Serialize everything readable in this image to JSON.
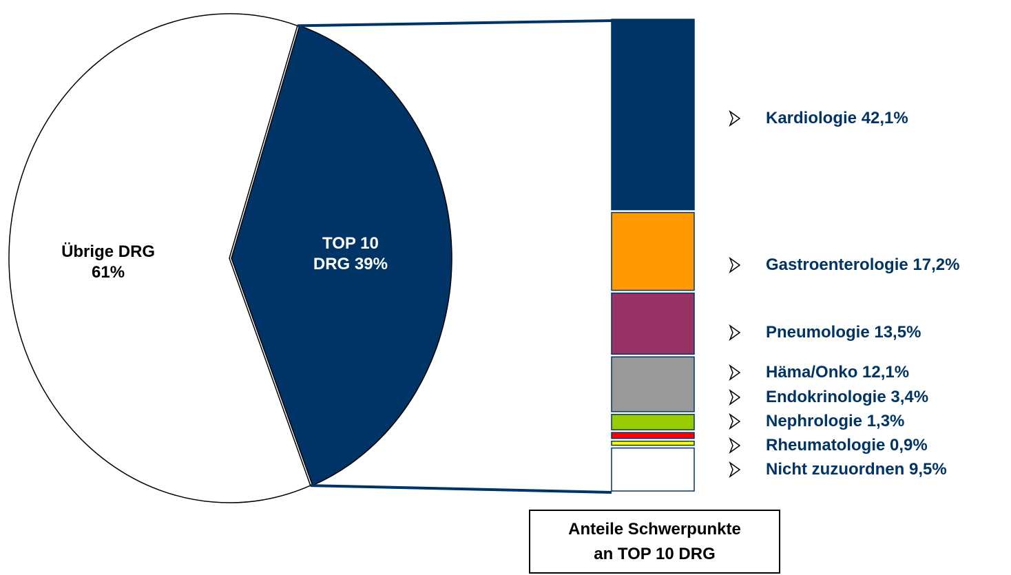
{
  "chart_data": [
    {
      "type": "pie",
      "categories": [
        "Übrige DRG",
        "TOP 10 DRG"
      ],
      "values": [
        61,
        39
      ],
      "value_labels": [
        "61%",
        "39%"
      ],
      "colors": [
        "#ffffff",
        "#003366"
      ],
      "text_colors": [
        "#000000",
        "#ffffff"
      ]
    },
    {
      "type": "stacked_bar",
      "title": "Anteile Schwerpunkte an TOP 10 DRG",
      "series": [
        {
          "name": "Kardiologie",
          "color": "#003366",
          "values": [
            42.1
          ],
          "value_labels": [
            "42,1%"
          ]
        },
        {
          "name": "Gastroenterologie",
          "color": "#ff9900",
          "values": [
            17.2
          ],
          "value_labels": [
            "17,2%"
          ]
        },
        {
          "name": "Pneumologie",
          "color": "#993366",
          "values": [
            13.5
          ],
          "value_labels": [
            "13,5%"
          ]
        },
        {
          "name": "Häma/Onko",
          "color": "#999999",
          "values": [
            12.1
          ],
          "value_labels": [
            "12,1%"
          ]
        },
        {
          "name": "Endokrinologie",
          "color": "#99cc00",
          "values": [
            3.4
          ],
          "value_labels": [
            "3,4%"
          ]
        },
        {
          "name": "Nephrologie",
          "color": "#ff0000",
          "values": [
            1.3
          ],
          "value_labels": [
            "1,3%"
          ]
        },
        {
          "name": "Rheumatologie",
          "color": "#ffff00",
          "values": [
            0.9
          ],
          "value_labels": [
            "0,9%"
          ]
        },
        {
          "name": "Nicht zuzuordnen",
          "color": "#ffffff",
          "values": [
            9.5
          ],
          "value_labels": [
            "9,5%"
          ]
        }
      ]
    }
  ]
}
